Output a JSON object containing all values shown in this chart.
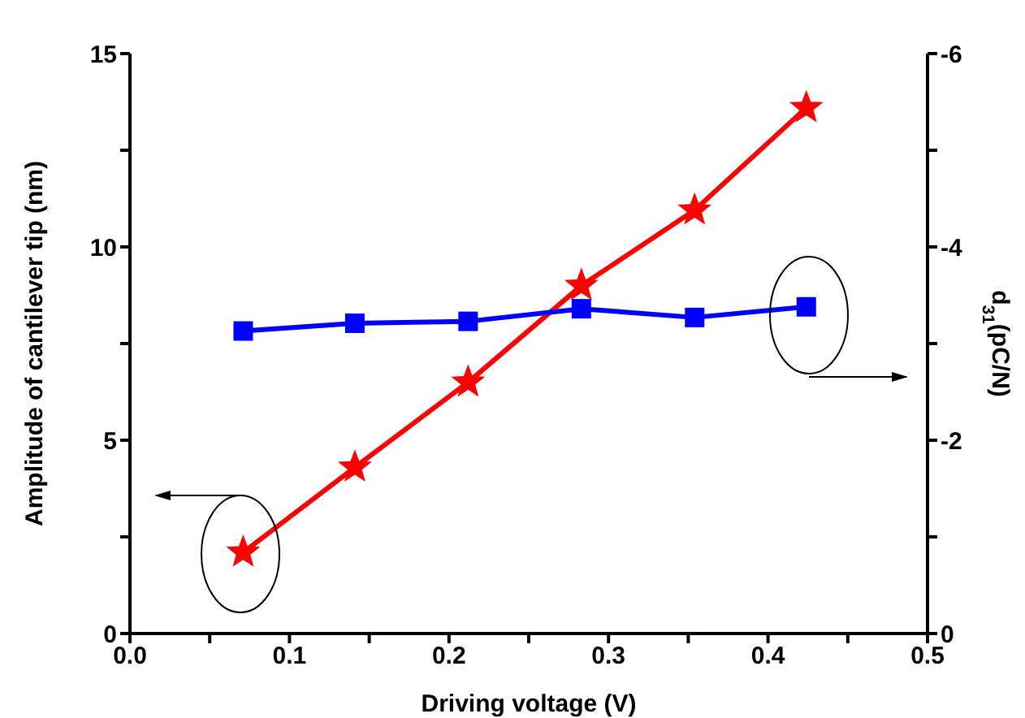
{
  "chart_data": {
    "type": "line",
    "xlabel": "Driving voltage (V)",
    "ylabel": "Amplitude of cantilever tip (nm)",
    "y2label": "d$_{31}$(pC/N)",
    "x": [
      0.071,
      0.141,
      0.212,
      0.283,
      0.354,
      0.424
    ],
    "series": [
      {
        "color": "#ff0000",
        "values": [
          2.1,
          4.3,
          6.5,
          9.0,
          10.95,
          13.6
        ],
        "marker": "star"
      },
      {
        "color": "#0000ff",
        "values": [
          -3.13,
          -3.21,
          -3.23,
          -3.36,
          -3.27,
          -3.38
        ],
        "marker": "square",
        "axis": "y2"
      }
    ],
    "xlim": [
      0,
      0.5
    ],
    "xticks": [
      {
        "value": 0,
        "label": "0.0"
      },
      {
        "value": 0.05,
        "label": null
      },
      0.1,
      {
        "value": 0.15,
        "label": null
      },
      0.2,
      {
        "value": 0.25,
        "label": null
      },
      0.3,
      {
        "value": 0.35,
        "label": null
      },
      0.4,
      {
        "value": 0.45,
        "label": null
      },
      0.5
    ],
    "ylim": [
      0,
      15
    ],
    "yticks": [
      0,
      {
        "value": 2.5,
        "label": null
      },
      5,
      {
        "value": 7.5,
        "label": null
      },
      10,
      {
        "value": 12.5,
        "label": null
      },
      15
    ],
    "y2lim": [
      0,
      -6
    ],
    "y2ticks": [
      0,
      {
        "value": -1,
        "label": null
      },
      -2,
      {
        "value": -3,
        "label": null
      },
      -4,
      {
        "value": -5,
        "label": null
      },
      -6
    ],
    "grid": false,
    "legend": false,
    "line_style": "solid"
  }
}
